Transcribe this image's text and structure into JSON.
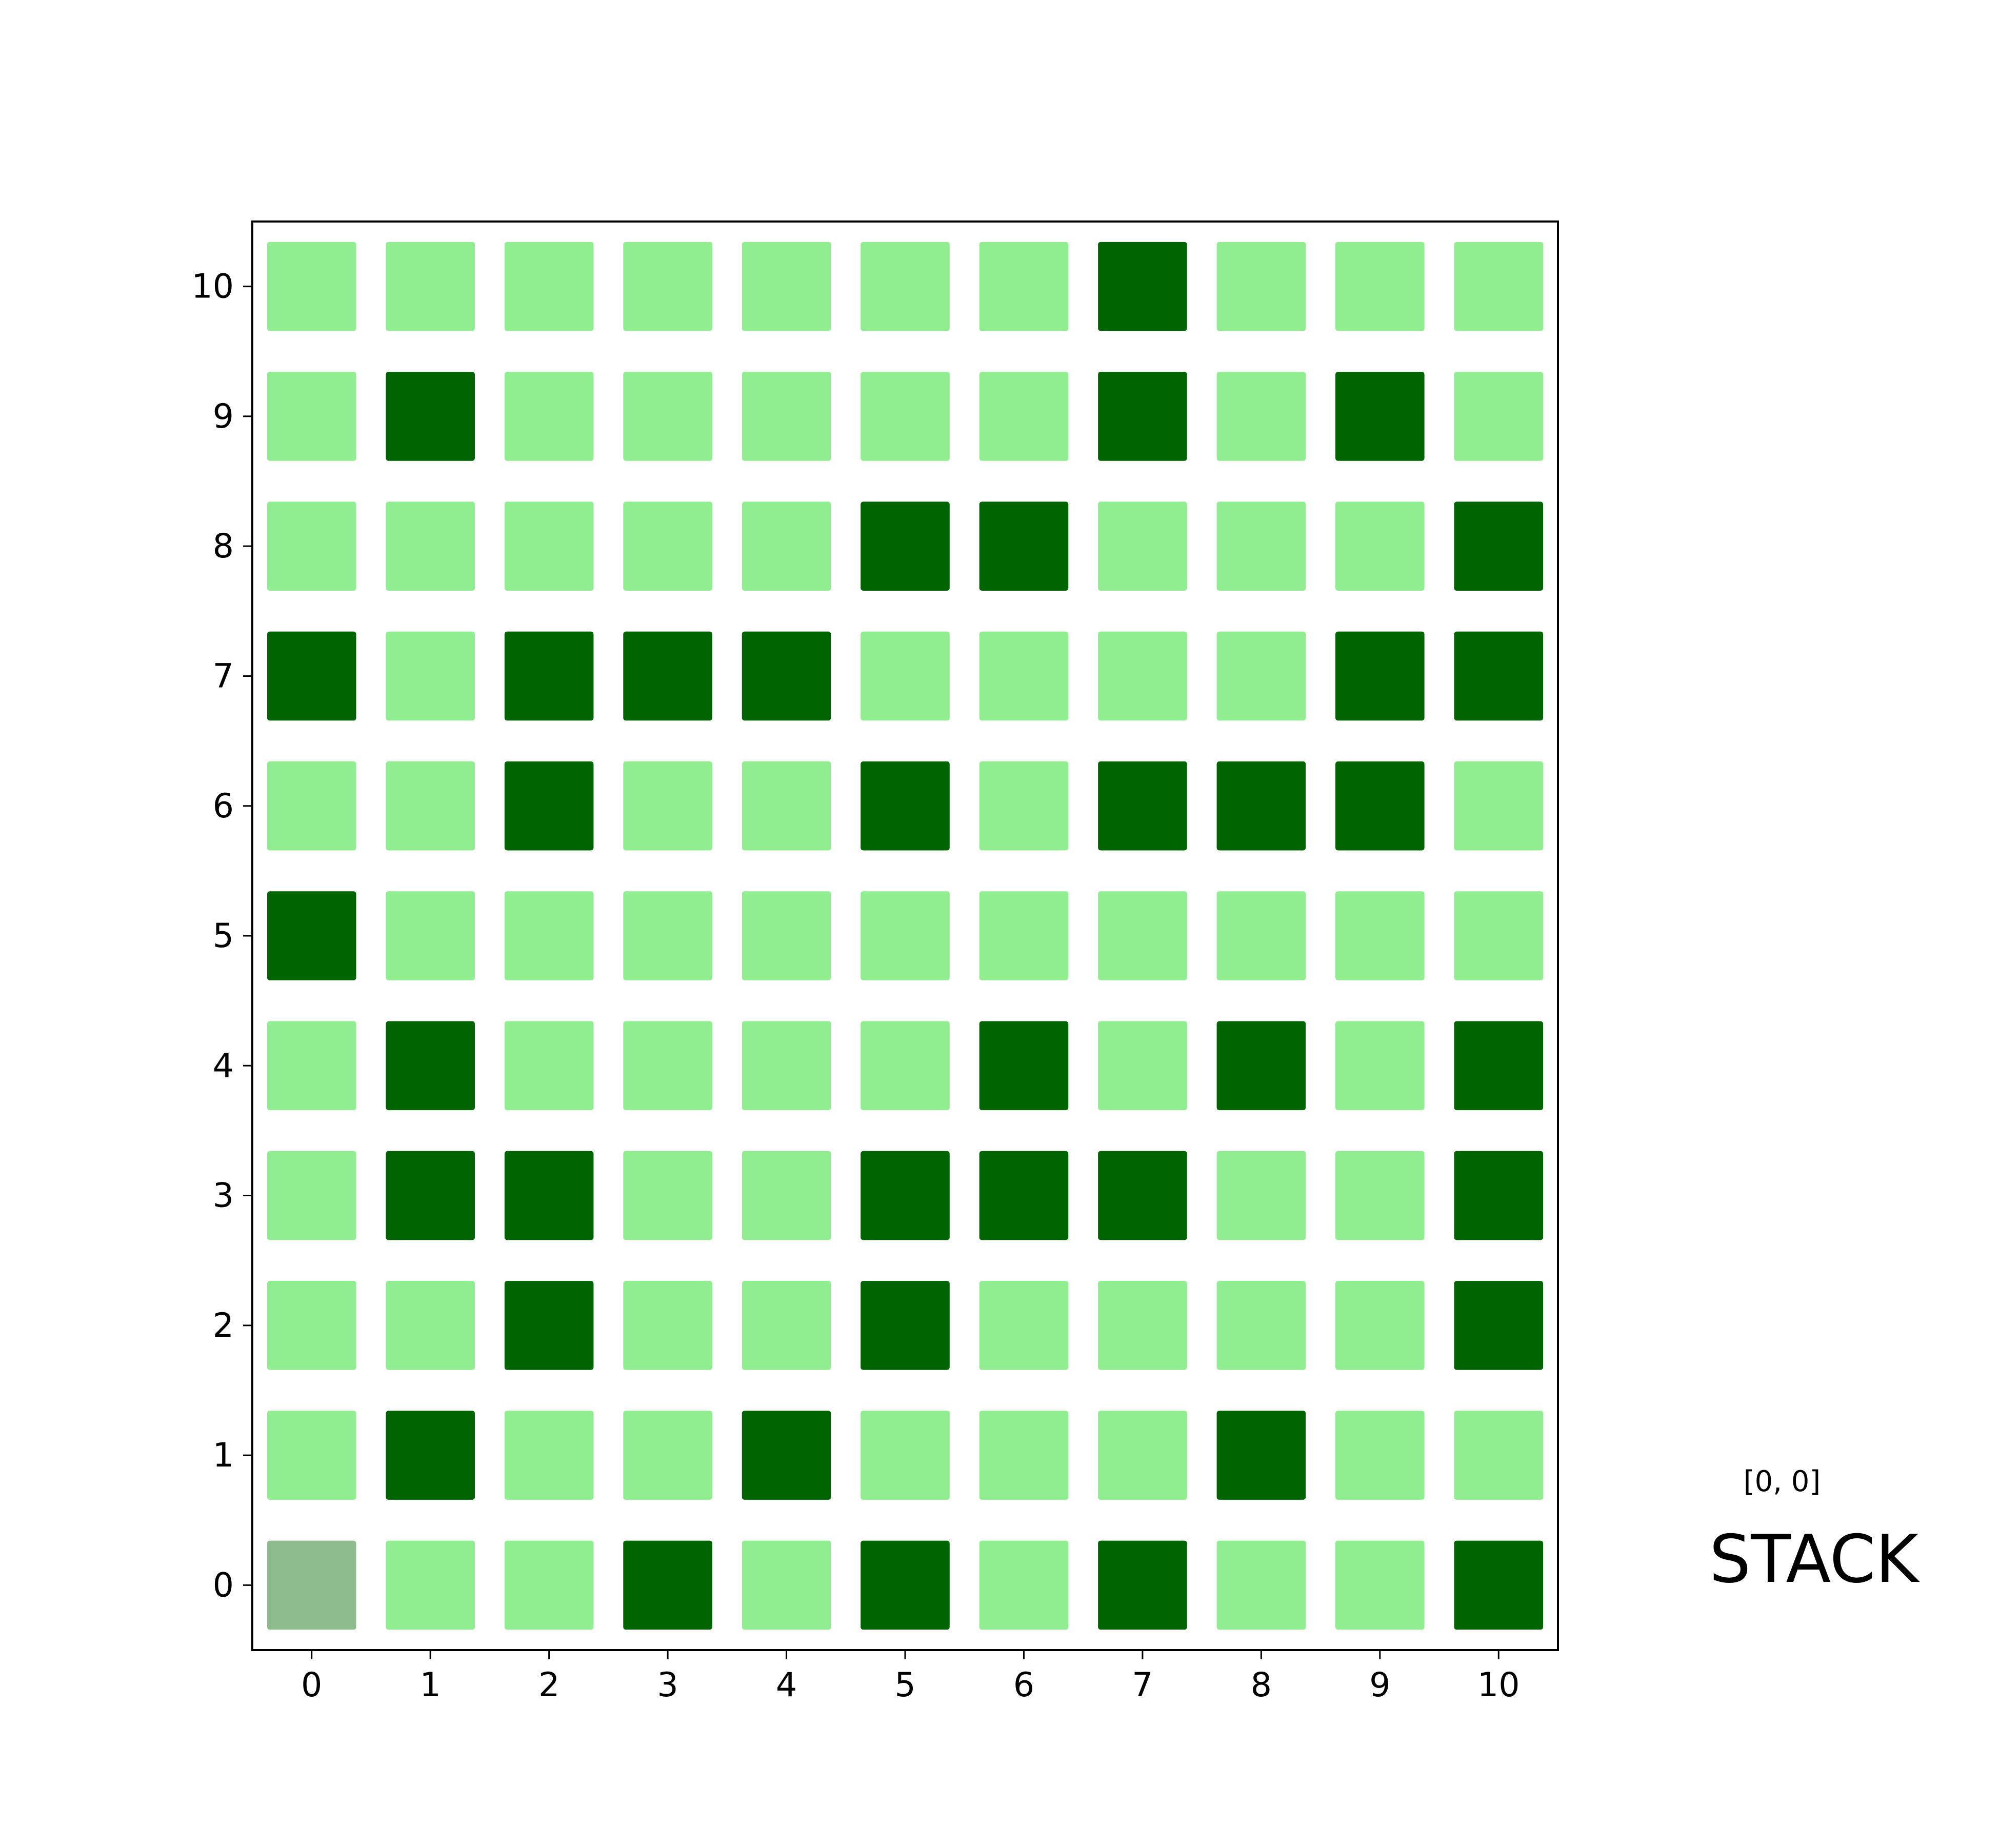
{
  "grid": {
    "xticks": [
      0,
      1,
      2,
      3,
      4,
      5,
      6,
      7,
      8,
      9,
      10
    ],
    "yticks": [
      0,
      1,
      2,
      3,
      4,
      5,
      6,
      7,
      8,
      9,
      10
    ],
    "xlim": [
      -0.5,
      10.5
    ],
    "ylim": [
      -0.5,
      10.5
    ],
    "cells": [
      [
        2,
        0,
        0,
        1,
        0,
        1,
        0,
        1,
        0,
        0,
        1
      ],
      [
        0,
        1,
        0,
        0,
        1,
        0,
        0,
        0,
        1,
        0,
        0
      ],
      [
        0,
        0,
        1,
        0,
        0,
        1,
        0,
        0,
        0,
        0,
        1
      ],
      [
        0,
        1,
        1,
        0,
        0,
        1,
        1,
        1,
        0,
        0,
        1
      ],
      [
        0,
        1,
        0,
        0,
        0,
        0,
        1,
        0,
        1,
        0,
        1
      ],
      [
        1,
        0,
        0,
        0,
        0,
        0,
        0,
        0,
        0,
        0,
        0
      ],
      [
        0,
        0,
        1,
        0,
        0,
        1,
        0,
        1,
        1,
        1,
        0
      ],
      [
        1,
        0,
        1,
        1,
        1,
        0,
        0,
        0,
        0,
        1,
        1
      ],
      [
        0,
        0,
        0,
        0,
        0,
        1,
        1,
        0,
        0,
        0,
        1
      ],
      [
        0,
        1,
        0,
        0,
        0,
        0,
        0,
        1,
        0,
        1,
        0
      ],
      [
        0,
        0,
        0,
        0,
        0,
        0,
        0,
        1,
        0,
        0,
        0
      ]
    ],
    "colors": [
      "#90ee90",
      "#006400",
      "#8fbc8f"
    ]
  },
  "position": "[0, 0]",
  "stack": "STACK"
}
